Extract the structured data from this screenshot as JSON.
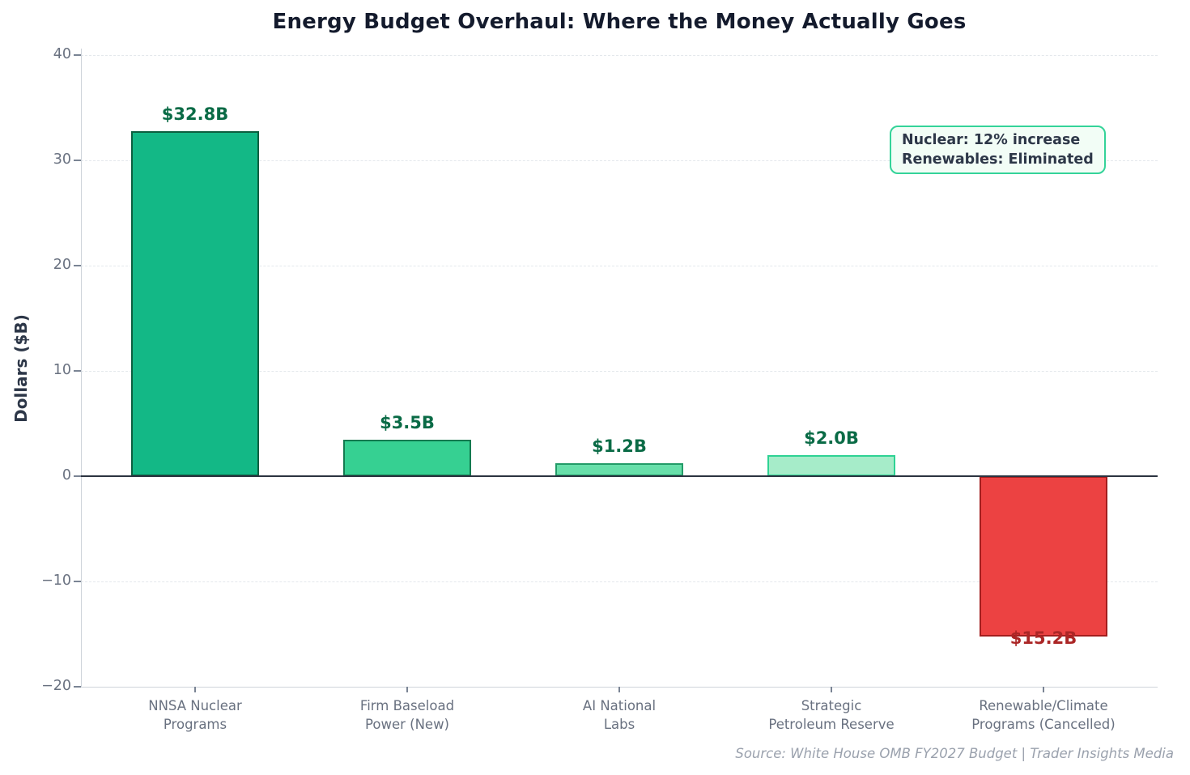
{
  "chart_data": {
    "type": "bar",
    "title": "Energy Budget Overhaul: Where the Money Actually Goes",
    "ylabel": "Dollars ($B)",
    "xlabel": "",
    "categories": [
      "NNSA Nuclear\nPrograms",
      "Firm Baseload\nPower (New)",
      "AI National\nLabs",
      "Strategic\nPetroleum Reserve",
      "Renewable/Climate\nPrograms (Cancelled)"
    ],
    "values": [
      32.8,
      3.5,
      1.2,
      2.0,
      -15.2
    ],
    "value_labels": [
      "$32.8B",
      "$3.5B",
      "$1.2B",
      "$2.0B",
      "$15.2B"
    ],
    "bar_styles": [
      {
        "fill": "#13b886",
        "edge": "#0b5e3f",
        "label_color": "#0a6b46"
      },
      {
        "fill": "#36d092",
        "edge": "#147a50",
        "label_color": "#0a6b46"
      },
      {
        "fill": "#68dfaa",
        "edge": "#239b68",
        "label_color": "#0a6b46"
      },
      {
        "fill": "#a6ecc9",
        "edge": "#2ed294",
        "label_color": "#0a6b46"
      },
      {
        "fill": "#ec4242",
        "edge": "#a31e1e",
        "label_color": "#ab2626"
      }
    ],
    "ylim": [
      -20,
      40
    ],
    "yticks": [
      40,
      30,
      20,
      10,
      0,
      -10,
      -20
    ],
    "ytick_labels": [
      "40",
      "30",
      "20",
      "10",
      "0",
      "−10",
      "−20"
    ],
    "grid": "horizontal dashed",
    "legend": "none",
    "annotation": {
      "lines": [
        "Nuclear: 12% increase",
        "Renewables: Eliminated"
      ],
      "border_color": "#34d399",
      "background_color": "#f2fdf6"
    },
    "source": "Source: White House OMB FY2027 Budget | Trader Insights Media"
  }
}
